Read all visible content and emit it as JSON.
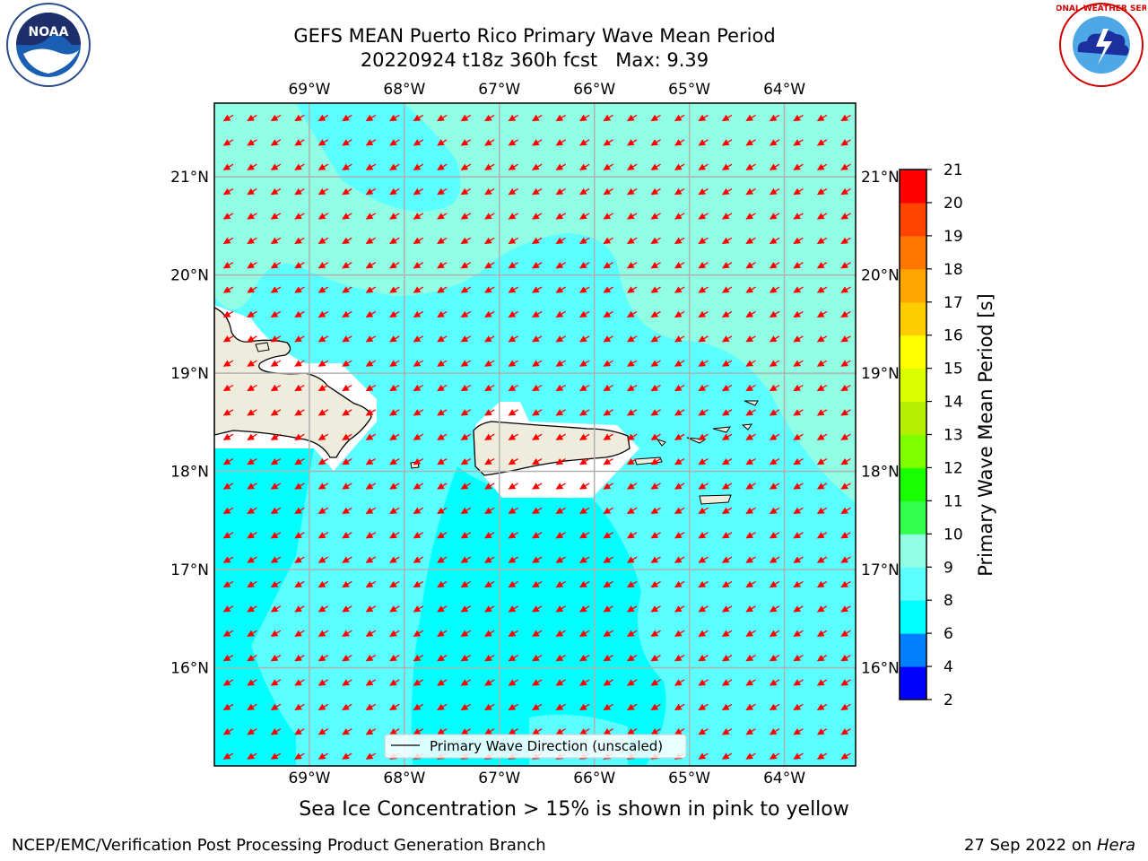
{
  "title": {
    "line1": "GEFS MEAN Puerto Rico Primary Wave Mean Period",
    "line2": "20220924 t18z 360h fcst   Max: 9.39"
  },
  "logos": {
    "left": {
      "icon": "noaa-logo",
      "text": "NOAA"
    },
    "right": {
      "icon": "nws-logo",
      "text": "NATIONAL WEATHER SERVICE"
    }
  },
  "map": {
    "lon_labels": [
      "69°W",
      "68°W",
      "67°W",
      "66°W",
      "65°W",
      "64°W"
    ],
    "lat_labels": [
      "21°N",
      "20°N",
      "19°N",
      "18°N",
      "17°N",
      "16°N"
    ],
    "lon_range": [
      -70.0,
      -63.25
    ],
    "lat_range": [
      15.0,
      21.75
    ],
    "land_color": "#eeecdc",
    "arrow_color": "#ff0000",
    "legend_label": "Primary Wave Direction (unscaled)"
  },
  "colorbar": {
    "label": "Primary Wave Mean Period [s]",
    "ticks": [
      "2",
      "4",
      "6",
      "8",
      "9",
      "10",
      "11",
      "12",
      "13",
      "14",
      "15",
      "16",
      "17",
      "18",
      "19",
      "20",
      "21"
    ],
    "colors": [
      "#0000ff",
      "#0080ff",
      "#00ffff",
      "#5cffff",
      "#91ffe4",
      "#33ff4d",
      "#1aff00",
      "#80ff00",
      "#b5ee00",
      "#d9ff00",
      "#ffff00",
      "#ffcc00",
      "#ffa500",
      "#ff7700",
      "#ff4400",
      "#ff0000"
    ]
  },
  "note": "Sea Ice Concentration > 15% is shown in pink to yellow",
  "footer": {
    "left": "NCEP/EMC/Verification Post Processing Product Generation Branch",
    "right_prefix": "27 Sep 2022 on ",
    "right_host": "Hera"
  }
}
